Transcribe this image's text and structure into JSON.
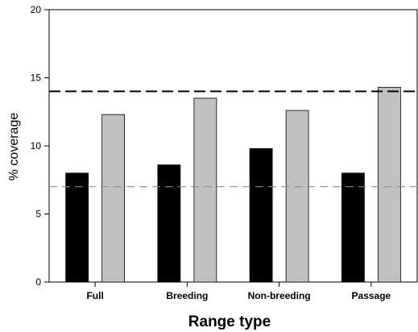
{
  "chart_data": {
    "type": "bar",
    "title": "",
    "xlabel": "Range type",
    "ylabel": "% coverage",
    "ylim": [
      0,
      20
    ],
    "yticks": [
      0,
      5,
      10,
      15,
      20
    ],
    "categories": [
      "Full",
      "Breeding",
      "Non-breeding",
      "Passage"
    ],
    "series": [
      {
        "values": [
          8.0,
          8.6,
          9.8,
          8.0
        ],
        "color": "#000000"
      },
      {
        "values": [
          12.3,
          13.5,
          12.6,
          14.3
        ],
        "color": "#c0c0c0"
      }
    ],
    "reference_lines": [
      {
        "value": 14.0,
        "color": "#000000",
        "style": "long-dash"
      },
      {
        "value": 7.0,
        "color": "#8c8c8c",
        "style": "dash"
      }
    ],
    "grid": false,
    "legend": "none"
  }
}
